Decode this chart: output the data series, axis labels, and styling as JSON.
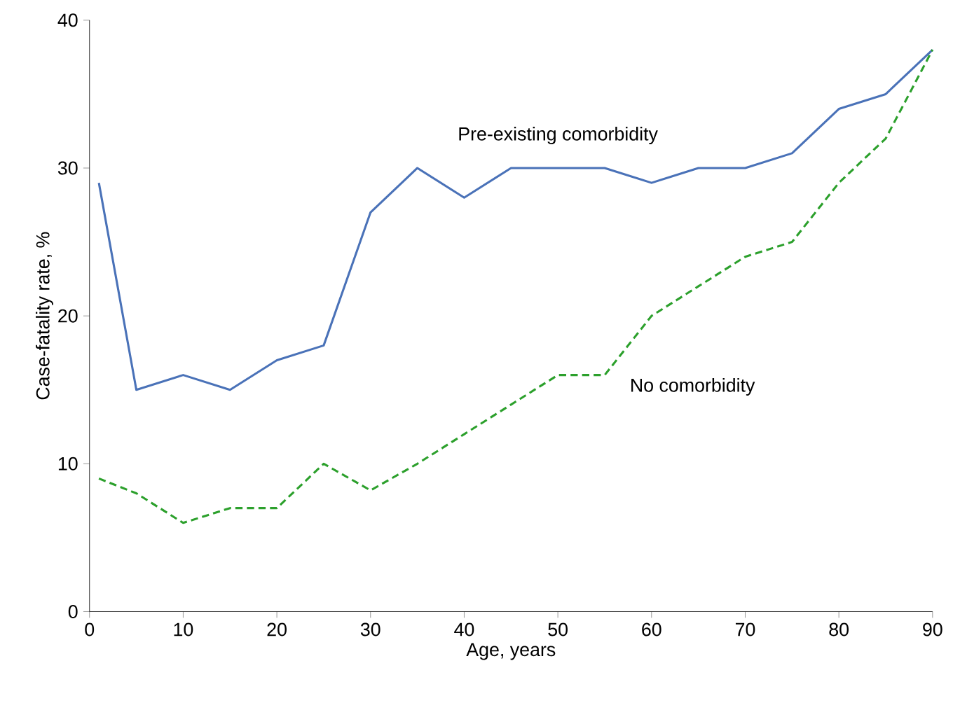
{
  "chart_data": {
    "type": "line",
    "xlabel": "Age, years",
    "ylabel": "Case-fatality rate, %",
    "xlim": [
      0,
      90
    ],
    "ylim": [
      0,
      40
    ],
    "xticks": [
      0,
      10,
      20,
      30,
      40,
      50,
      60,
      70,
      80,
      90
    ],
    "yticks": [
      0,
      10,
      20,
      30,
      40
    ],
    "grid": false,
    "legend": false,
    "marker": "none",
    "series": [
      {
        "name": "Pre-existing comorbidity",
        "color": "#4a72b8",
        "line_style": "solid",
        "x": [
          1,
          5,
          10,
          15,
          20,
          25,
          30,
          35,
          40,
          45,
          50,
          55,
          60,
          65,
          70,
          75,
          80,
          85,
          90
        ],
        "values": [
          29,
          15,
          16,
          15,
          17,
          18,
          27,
          30,
          28,
          30,
          30,
          30,
          29,
          30,
          30,
          31,
          34,
          35,
          38
        ]
      },
      {
        "name": "No comorbidity",
        "color": "#2ca02c",
        "line_style": "dashed",
        "x": [
          1,
          5,
          10,
          15,
          20,
          25,
          30,
          35,
          40,
          45,
          50,
          55,
          60,
          65,
          70,
          75,
          80,
          85,
          90
        ],
        "values": [
          9,
          8,
          6,
          7,
          7,
          10,
          8.2,
          10,
          12,
          14,
          16,
          16,
          20,
          22,
          24,
          25,
          29,
          32,
          38
        ]
      }
    ]
  }
}
